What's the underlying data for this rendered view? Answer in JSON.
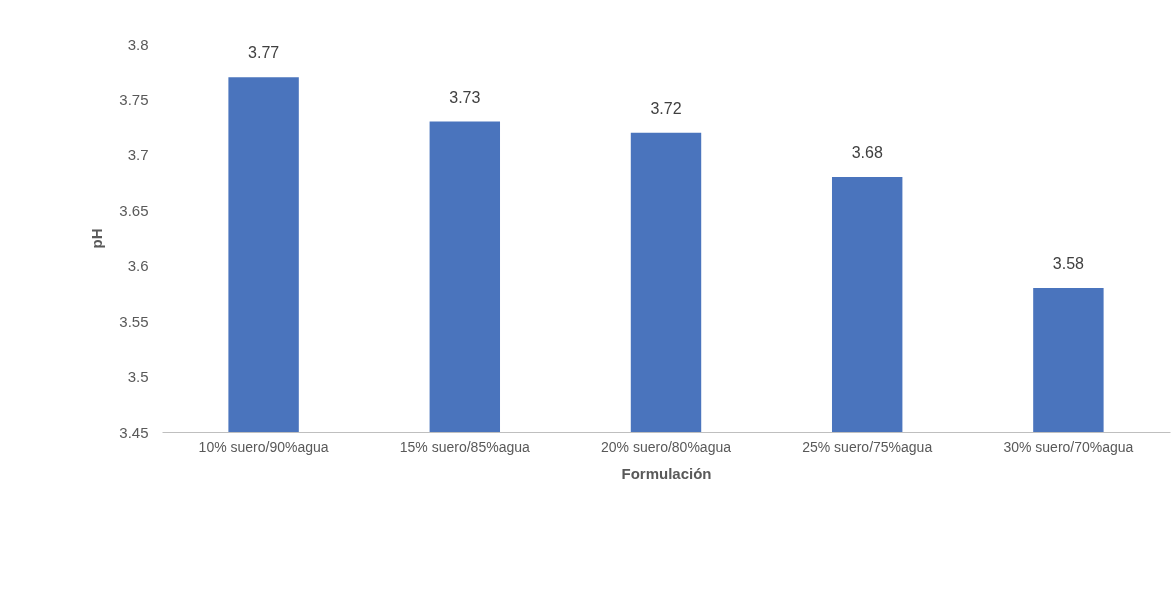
{
  "chart_data": {
    "type": "bar",
    "xlabel": "Formulación",
    "ylabel": "pH",
    "categories": [
      "10% suero/90%agua",
      "15% suero/85%agua",
      "20% suero/80%agua",
      "25% suero/75%agua",
      "30% suero/70%agua"
    ],
    "values": [
      3.77,
      3.73,
      3.72,
      3.68,
      3.58
    ],
    "color": "#4a74bd",
    "ylim": [
      3.45,
      3.8
    ],
    "yticks": [
      3.45,
      3.5,
      3.55,
      3.6,
      3.65,
      3.7,
      3.75,
      3.8
    ],
    "grid": false,
    "data_labels": true
  }
}
